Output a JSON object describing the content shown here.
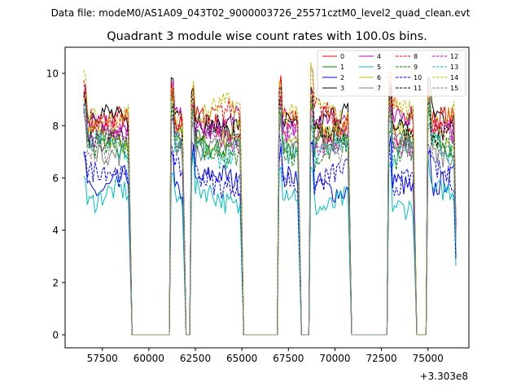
{
  "chart_data": {
    "type": "line",
    "suptitle": "Data file: modeM0/AS1A09_043T02_9000003726_25571cztM0_level2_quad_clean.evt",
    "title": "Quadrant 3 module wise count rates with 100.0s bins.",
    "xlabel": "",
    "ylabel": "",
    "x_offset_label": "+3.303e8",
    "xlim": [
      55500,
      77200
    ],
    "ylim": [
      -0.5,
      11.0
    ],
    "x_ticks": [
      57500,
      60000,
      62500,
      65000,
      67500,
      70000,
      72500,
      75000
    ],
    "x_tick_labels": [
      "57500",
      "60000",
      "62500",
      "65000",
      "67500",
      "70000",
      "72500",
      "75000"
    ],
    "y_ticks": [
      0,
      2,
      4,
      6,
      8,
      10
    ],
    "y_tick_labels": [
      "0",
      "2",
      "4",
      "6",
      "8",
      "10"
    ],
    "legend_position": "top-right",
    "segments": [
      {
        "start": 56500,
        "end": 59000
      },
      {
        "start": 61200,
        "end": 61900
      },
      {
        "start": 62300,
        "end": 65000
      },
      {
        "start": 67000,
        "end": 68100
      },
      {
        "start": 68700,
        "end": 70800
      },
      {
        "start": 72900,
        "end": 74300
      },
      {
        "start": 75000,
        "end": 76500
      }
    ],
    "series": [
      {
        "name": "0",
        "color": "#ff0000",
        "dashed": false,
        "level": 8.0
      },
      {
        "name": "1",
        "color": "#008000",
        "dashed": false,
        "level": 7.4
      },
      {
        "name": "2",
        "color": "#0000ff",
        "dashed": false,
        "level": 5.8
      },
      {
        "name": "3",
        "color": "#000000",
        "dashed": false,
        "level": 8.2
      },
      {
        "name": "4",
        "color": "#bf00bf",
        "dashed": false,
        "level": 8.1
      },
      {
        "name": "5",
        "color": "#00bfbf",
        "dashed": false,
        "level": 5.2
      },
      {
        "name": "6",
        "color": "#bfbf00",
        "dashed": false,
        "level": 7.6
      },
      {
        "name": "7",
        "color": "#808080",
        "dashed": false,
        "level": 7.2
      },
      {
        "name": "8",
        "color": "#ff0000",
        "dashed": true,
        "level": 8.3
      },
      {
        "name": "9",
        "color": "#008000",
        "dashed": true,
        "level": 7.0
      },
      {
        "name": "10",
        "color": "#0000ff",
        "dashed": true,
        "level": 6.0
      },
      {
        "name": "11",
        "color": "#000000",
        "dashed": true,
        "level": 7.8
      },
      {
        "name": "12",
        "color": "#bf00bf",
        "dashed": true,
        "level": 7.5
      },
      {
        "name": "13",
        "color": "#00bfbf",
        "dashed": true,
        "level": 7.1
      },
      {
        "name": "14",
        "color": "#bfbf00",
        "dashed": true,
        "level": 8.5
      },
      {
        "name": "15",
        "color": "#808080",
        "dashed": true,
        "level": 7.3
      }
    ]
  }
}
